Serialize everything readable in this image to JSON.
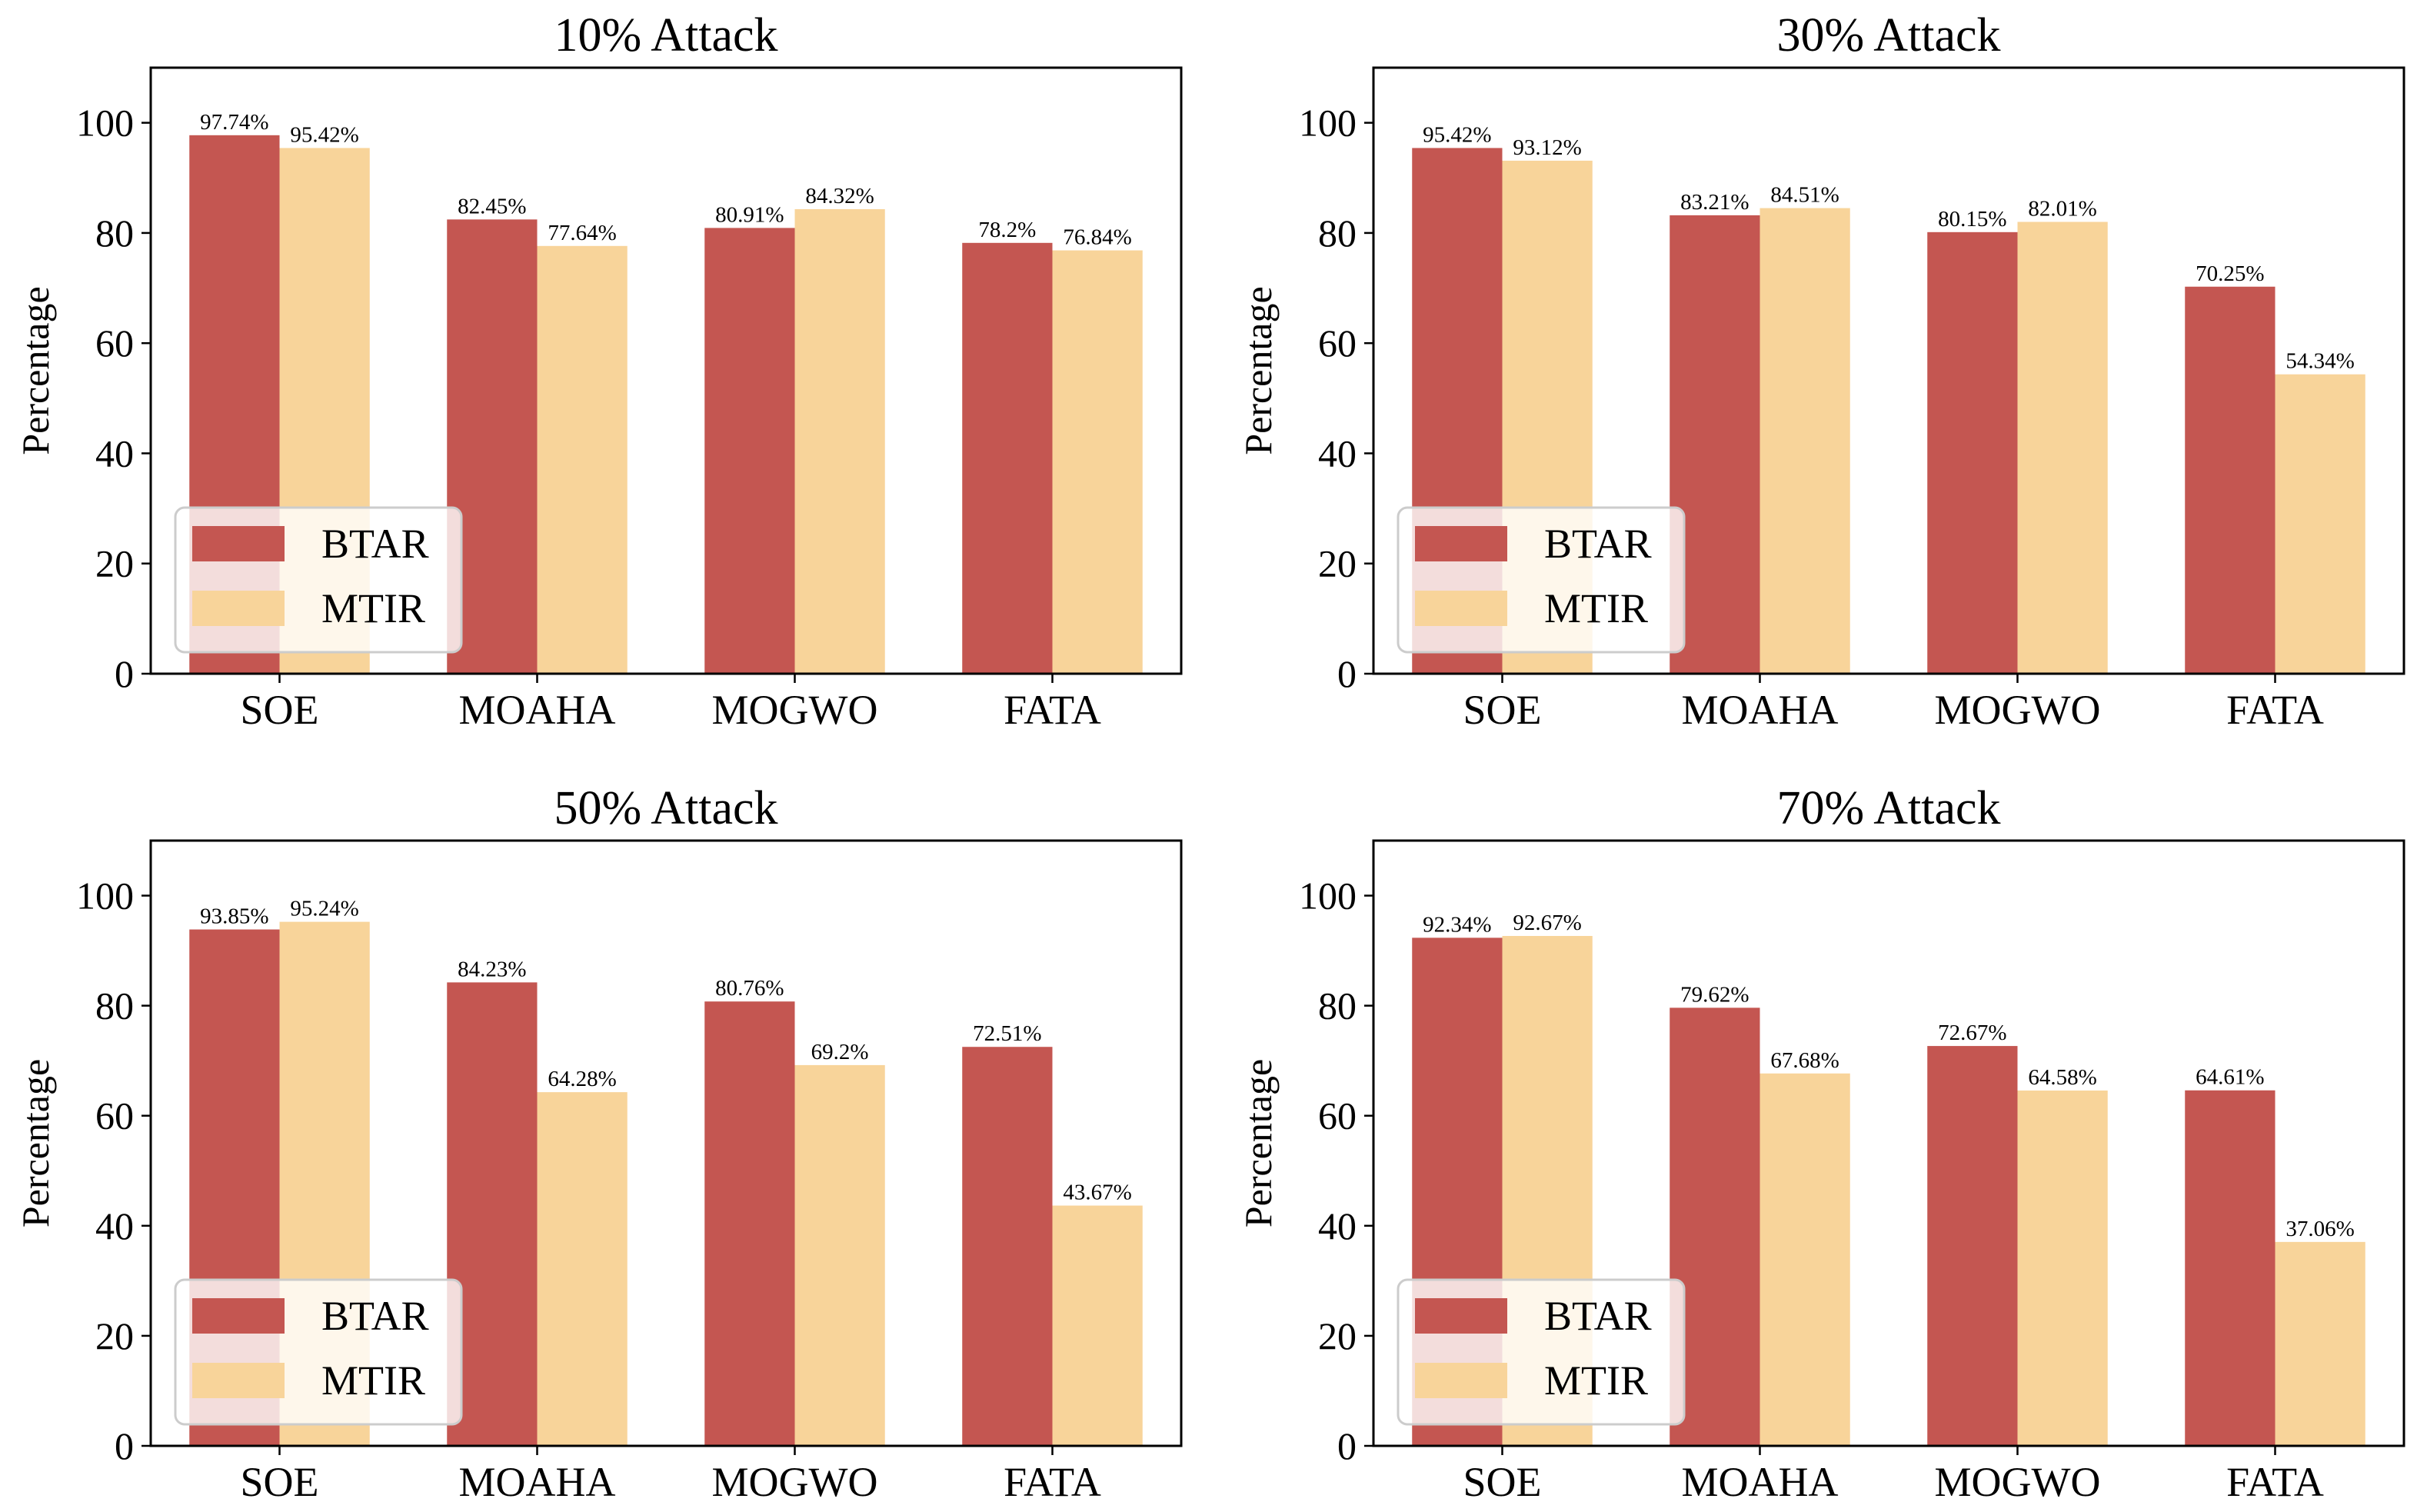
{
  "colors": {
    "btar": "#c45651",
    "mtir": "#f8d49a"
  },
  "chart_data": [
    {
      "type": "bar",
      "title": "10% Attack",
      "ylabel": "Percentage",
      "ylim": [
        0,
        110
      ],
      "yticks": [
        "0",
        "20",
        "40",
        "60",
        "80",
        "100"
      ],
      "categories": [
        "SOE",
        "MOAHA",
        "MOGWO",
        "FATA"
      ],
      "legend_position": "lower-left",
      "series": [
        {
          "name": "BTAR",
          "values": [
            97.74,
            82.45,
            80.91,
            78.2
          ],
          "labels": [
            "97.74%",
            "82.45%",
            "80.91%",
            "78.2%"
          ]
        },
        {
          "name": "MTIR",
          "values": [
            95.42,
            77.64,
            84.32,
            76.84
          ],
          "labels": [
            "95.42%",
            "77.64%",
            "84.32%",
            "76.84%"
          ]
        }
      ]
    },
    {
      "type": "bar",
      "title": "30% Attack",
      "ylabel": "Percentage",
      "ylim": [
        0,
        110
      ],
      "yticks": [
        "0",
        "20",
        "40",
        "60",
        "80",
        "100"
      ],
      "categories": [
        "SOE",
        "MOAHA",
        "MOGWO",
        "FATA"
      ],
      "legend_position": "lower-left",
      "series": [
        {
          "name": "BTAR",
          "values": [
            95.42,
            83.21,
            80.15,
            70.25
          ],
          "labels": [
            "95.42%",
            "83.21%",
            "80.15%",
            "70.25%"
          ]
        },
        {
          "name": "MTIR",
          "values": [
            93.12,
            84.51,
            82.01,
            54.34
          ],
          "labels": [
            "93.12%",
            "84.51%",
            "82.01%",
            "54.34%"
          ]
        }
      ]
    },
    {
      "type": "bar",
      "title": "50% Attack",
      "ylabel": "Percentage",
      "ylim": [
        0,
        110
      ],
      "yticks": [
        "0",
        "20",
        "40",
        "60",
        "80",
        "100"
      ],
      "categories": [
        "SOE",
        "MOAHA",
        "MOGWO",
        "FATA"
      ],
      "legend_position": "lower-left",
      "series": [
        {
          "name": "BTAR",
          "values": [
            93.85,
            84.23,
            80.76,
            72.51
          ],
          "labels": [
            "93.85%",
            "84.23%",
            "80.76%",
            "72.51%"
          ]
        },
        {
          "name": "MTIR",
          "values": [
            95.24,
            64.28,
            69.2,
            43.67
          ],
          "labels": [
            "95.24%",
            "64.28%",
            "69.2%",
            "43.67%"
          ]
        }
      ]
    },
    {
      "type": "bar",
      "title": "70% Attack",
      "ylabel": "Percentage",
      "ylim": [
        0,
        110
      ],
      "yticks": [
        "0",
        "20",
        "40",
        "60",
        "80",
        "100"
      ],
      "categories": [
        "SOE",
        "MOAHA",
        "MOGWO",
        "FATA"
      ],
      "legend_position": "lower-left",
      "series": [
        {
          "name": "BTAR",
          "values": [
            92.34,
            79.62,
            72.67,
            64.61
          ],
          "labels": [
            "92.34%",
            "79.62%",
            "72.67%",
            "64.61%"
          ]
        },
        {
          "name": "MTIR",
          "values": [
            92.67,
            67.68,
            64.58,
            37.06
          ],
          "labels": [
            "92.67%",
            "67.68%",
            "64.58%",
            "37.06%"
          ]
        }
      ]
    }
  ]
}
